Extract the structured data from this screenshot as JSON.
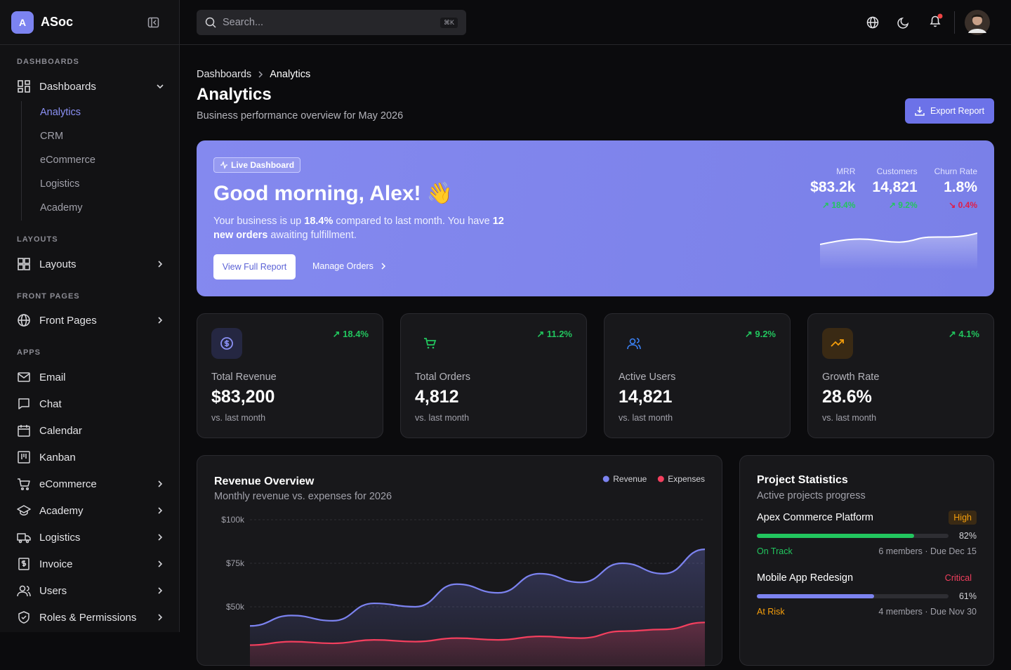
{
  "sidebar": {
    "brand_initial": "A",
    "brand": "ASoc",
    "sections": [
      {
        "title": "DASHBOARDS",
        "items": [
          {
            "label": "Dashboards",
            "children": [
              "Analytics",
              "CRM",
              "eCommerce",
              "Logistics",
              "Academy"
            ]
          }
        ]
      },
      {
        "title": "LAYOUTS",
        "items": [
          {
            "label": "Layouts"
          }
        ]
      },
      {
        "title": "FRONT PAGES",
        "items": [
          {
            "label": "Front Pages"
          }
        ]
      },
      {
        "title": "APPS",
        "items": [
          {
            "label": "Email"
          },
          {
            "label": "Chat"
          },
          {
            "label": "Calendar"
          },
          {
            "label": "Kanban"
          },
          {
            "label": "eCommerce"
          },
          {
            "label": "Academy"
          },
          {
            "label": "Logistics"
          },
          {
            "label": "Invoice"
          },
          {
            "label": "Users"
          },
          {
            "label": "Roles & Permissions"
          }
        ]
      }
    ]
  },
  "header": {
    "search_placeholder": "Search...",
    "shortcut": "⌘K"
  },
  "breadcrumb": [
    "Dashboards",
    "Analytics"
  ],
  "page": {
    "title": "Analytics",
    "subtitle": "Business performance overview for May 2026",
    "export_button": "Export Report"
  },
  "hero": {
    "badge": "Live Dashboard",
    "greeting": "Good morning, Alex! 👋",
    "message": [
      "Your business is up ",
      "18.4%",
      " compared to last month. You have ",
      "12 new orders",
      " awaiting fulfillment."
    ],
    "primary_button": "View Full Report",
    "secondary_button": "Manage Orders",
    "stats": [
      {
        "label": "MRR",
        "value": "$83.2k",
        "change": "18.4%"
      },
      {
        "label": "Customers",
        "value": "14,821",
        "change": "9.2%"
      },
      {
        "label": "Churn Rate",
        "value": "1.8%",
        "change": "0.4%"
      }
    ]
  },
  "stat_cards": [
    {
      "label": "Total Revenue",
      "value": "$83,200",
      "change": "18.4%",
      "note": "vs. last month"
    },
    {
      "label": "Total Orders",
      "value": "4,812",
      "change": "11.2%",
      "note": "vs. last month"
    },
    {
      "label": "Active Users",
      "value": "14,821",
      "change": "9.2%",
      "note": "vs. last month"
    },
    {
      "label": "Growth Rate",
      "value": "28.6%",
      "change": "4.1%",
      "note": "vs. last month"
    }
  ],
  "revenue_chart": {
    "type": "line",
    "title": "Revenue Overview",
    "subtitle": "Monthly revenue vs. expenses for 2026",
    "ylim": [
      0,
      100000
    ],
    "yticks": [
      {
        "value": 100000,
        "label": "$100k"
      },
      {
        "value": 75000,
        "label": "$75k"
      },
      {
        "value": 50000,
        "label": "$50k"
      }
    ],
    "grid": true,
    "series": [
      {
        "name": "Revenue",
        "color": "#7c83f0",
        "values": [
          39000,
          45000,
          42000,
          52000,
          50000,
          63000,
          58000,
          69000,
          64000,
          75000,
          69000,
          83000
        ]
      },
      {
        "name": "Expenses",
        "color": "#f43f5e",
        "values": [
          28000,
          30000,
          29000,
          31000,
          30000,
          32000,
          31000,
          33000,
          32000,
          36000,
          37000,
          41000
        ]
      }
    ]
  },
  "projects": {
    "title": "Project Statistics",
    "subtitle": "Active projects progress",
    "items": [
      {
        "name": "Apex Commerce Platform",
        "priority": "High",
        "progress": 82,
        "progress_label": "82%",
        "status": "On Track",
        "meta": "6 members · Due Dec 15"
      },
      {
        "name": "Mobile App Redesign",
        "priority": "Critical",
        "progress": 61,
        "progress_label": "61%",
        "status": "At Risk",
        "meta": "4 members · Due Nov 30"
      }
    ]
  }
}
